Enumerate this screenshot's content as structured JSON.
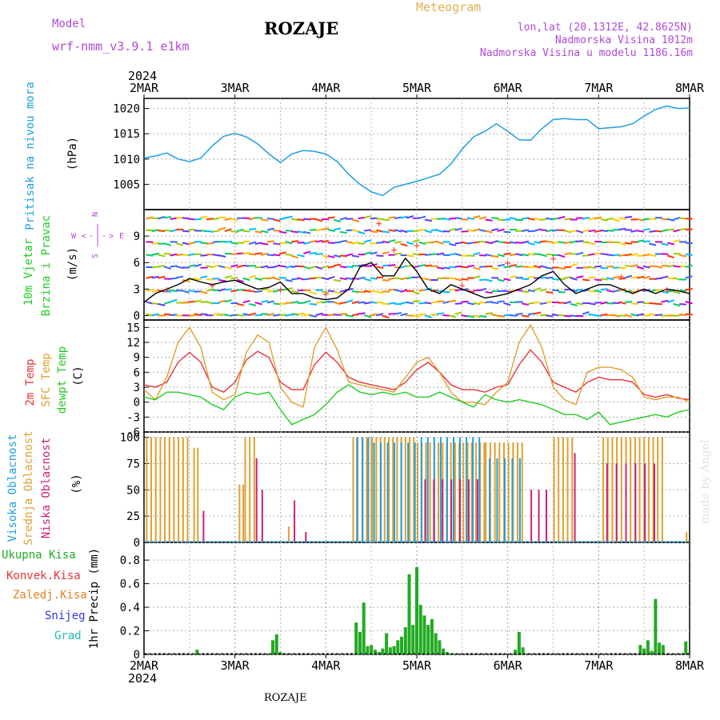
{
  "header": {
    "model_label": "Model",
    "model_name": "wrf-nmm_v3.9.1 e1km",
    "location": "ROZAJE",
    "product": "Meteogram",
    "coords": "lon,lat (20.1312E, 42.8625N)",
    "elevation": "Nadmorska Visina 1012m",
    "model_elevation": "Nadmorska Visina u modelu 1186.16m",
    "credit": "made by Angel",
    "footer_location": "ROZAJE"
  },
  "colors": {
    "pressure": "#1f9fe0",
    "wind_speed": "#000000",
    "gust_marker": "#ff3333",
    "temp_2m": "#e8323a",
    "temp_sfc": "#e0a030",
    "dewpoint": "#22cc22",
    "cloud_high": "#1f9fe0",
    "cloud_mid": "#e0a030",
    "cloud_low": "#cc1f7a",
    "precip_total": "#22aa22",
    "precip_conv": "#e8323a",
    "precip_frozen": "#e88020",
    "precip_snow": "#3333dd",
    "precip_hail": "#22bbbb",
    "title_purple": "#b04ad8",
    "meteogram_gold": "#e0b050"
  },
  "chart_data": [
    {
      "type": "line",
      "name": "pressure",
      "ylabel": "Pritisak na nivou mora",
      "unit": "(hPa)",
      "ylim": [
        1000,
        1022
      ],
      "yticks": [
        1005,
        1010,
        1015,
        1020
      ],
      "x_hours": [
        0,
        3,
        6,
        9,
        12,
        15,
        18,
        21,
        24,
        27,
        30,
        33,
        36,
        39,
        42,
        45,
        48,
        51,
        54,
        57,
        60,
        63,
        66,
        69,
        72,
        75,
        78,
        81,
        84,
        87,
        90,
        93,
        96,
        99,
        102,
        105,
        108,
        111,
        114,
        117,
        120,
        123,
        126,
        129,
        132,
        135,
        138,
        141,
        144
      ],
      "values": [
        1010.2,
        1010.6,
        1011.2,
        1010.0,
        1009.5,
        1010.2,
        1012.6,
        1014.5,
        1015.1,
        1014.4,
        1013.0,
        1011.0,
        1009.3,
        1011.0,
        1011.7,
        1011.5,
        1011.0,
        1009.5,
        1007.0,
        1005.0,
        1003.5,
        1002.8,
        1004.4,
        1005.0,
        1005.6,
        1006.3,
        1007.0,
        1009.0,
        1012.0,
        1014.4,
        1015.5,
        1017.0,
        1015.5,
        1013.8,
        1013.7,
        1016.0,
        1017.8,
        1018.0,
        1017.8,
        1017.8,
        1016.0,
        1016.2,
        1016.4,
        1017.0,
        1018.5,
        1019.8,
        1020.5,
        1020.0,
        1020.1
      ]
    },
    {
      "type": "line",
      "name": "wind",
      "ylabel_line1": "10m Vjetar",
      "ylabel_line2": "Brzina i Pravac",
      "unit": "(m/s)",
      "compass": {
        "n": "N",
        "s": "S",
        "e": "E",
        "w": "W",
        "left": "<",
        "right": ">",
        "dash": "-"
      },
      "ylim": [
        -0.5,
        12
      ],
      "yticks": [
        0,
        3,
        6,
        9
      ],
      "x_hours": [
        0,
        3,
        6,
        9,
        12,
        15,
        18,
        21,
        24,
        27,
        30,
        33,
        36,
        39,
        42,
        45,
        48,
        51,
        54,
        57,
        60,
        63,
        66,
        69,
        72,
        75,
        78,
        81,
        84,
        87,
        90,
        93,
        96,
        99,
        102,
        105,
        108,
        111,
        114,
        117,
        120,
        123,
        126,
        129,
        132,
        135,
        138,
        141,
        144
      ],
      "values": [
        1.5,
        2.5,
        3.0,
        3.5,
        4.2,
        3.8,
        3.5,
        3.8,
        4.0,
        3.5,
        3.0,
        3.2,
        3.8,
        2.5,
        2.5,
        2.0,
        1.8,
        2.0,
        3.0,
        5.5,
        6.0,
        4.5,
        4.5,
        6.5,
        5.0,
        3.0,
        2.5,
        3.5,
        3.0,
        2.5,
        2.0,
        2.2,
        2.5,
        3.0,
        3.5,
        4.5,
        5.0,
        3.5,
        2.5,
        3.0,
        3.5,
        3.5,
        3.0,
        2.5,
        3.0,
        2.5,
        3.0,
        2.8,
        2.5
      ],
      "gust_hours": [
        6,
        18,
        36,
        48,
        62,
        66,
        72,
        84,
        96,
        108,
        126,
        138
      ],
      "gust_values": [
        3.0,
        3.5,
        3.0,
        2.5,
        10.5,
        7.5,
        8.0,
        3.5,
        6.0,
        6.5,
        4.5,
        3.0
      ]
    },
    {
      "type": "line",
      "name": "temperature",
      "ylabel_2m": "2m Temp",
      "ylabel_sfc": "SFC Temp",
      "ylabel_dew": "dewpt Temp",
      "unit": "(C)",
      "ylim": [
        -6,
        16.5
      ],
      "yticks": [
        -6,
        -3,
        0,
        3,
        6,
        9,
        12,
        15
      ],
      "x_hours": [
        0,
        3,
        6,
        9,
        12,
        15,
        18,
        21,
        24,
        27,
        30,
        33,
        36,
        39,
        42,
        45,
        48,
        51,
        54,
        57,
        60,
        63,
        66,
        69,
        72,
        75,
        78,
        81,
        84,
        87,
        90,
        93,
        96,
        99,
        102,
        105,
        108,
        111,
        114,
        117,
        120,
        123,
        126,
        129,
        132,
        135,
        138,
        141,
        144
      ],
      "series": [
        {
          "key": "t2m",
          "values": [
            3.5,
            3.0,
            4.0,
            8.0,
            10.0,
            8.0,
            3.0,
            2.0,
            4.0,
            8.5,
            10.2,
            9.0,
            4.0,
            2.5,
            2.5,
            7.5,
            10.0,
            8.0,
            5.0,
            4.0,
            3.5,
            3.0,
            2.5,
            4.0,
            6.5,
            8.0,
            6.0,
            3.5,
            2.5,
            2.5,
            2.0,
            3.0,
            3.5,
            7.5,
            10.5,
            8.0,
            4.0,
            3.0,
            2.0,
            4.0,
            5.0,
            4.5,
            4.5,
            4.0,
            1.5,
            1.0,
            1.5,
            0.8,
            0.5
          ]
        },
        {
          "key": "sfc",
          "values": [
            2.5,
            0.5,
            5.0,
            12.0,
            15.0,
            11.0,
            2.0,
            0.5,
            1.5,
            10.0,
            13.5,
            12.0,
            3.0,
            0.0,
            -1.0,
            11.0,
            15.0,
            10.5,
            4.0,
            3.5,
            3.0,
            2.5,
            2.0,
            5.0,
            8.0,
            9.0,
            6.0,
            2.0,
            0.0,
            0.0,
            -0.5,
            2.0,
            4.0,
            12.0,
            15.5,
            11.0,
            3.0,
            0.5,
            -0.5,
            6.0,
            7.0,
            7.0,
            6.5,
            5.0,
            1.0,
            0.5,
            1.0,
            1.0,
            0.0
          ]
        },
        {
          "key": "dew",
          "values": [
            1.0,
            0.5,
            2.0,
            2.0,
            1.5,
            1.0,
            -0.5,
            -1.5,
            1.0,
            2.0,
            1.5,
            2.0,
            -1.5,
            -4.5,
            -3.5,
            -2.5,
            -0.5,
            2.0,
            3.5,
            2.0,
            1.5,
            2.0,
            1.5,
            2.0,
            1.0,
            1.0,
            2.0,
            1.0,
            0.0,
            -1.0,
            1.5,
            0.5,
            0.0,
            0.5,
            0.0,
            -0.5,
            -1.5,
            -2.5,
            -2.5,
            -3.5,
            -2.0,
            -4.5,
            -4.0,
            -3.5,
            -3.0,
            -2.5,
            -3.0,
            -2.0,
            -1.5
          ]
        }
      ]
    },
    {
      "type": "bar",
      "name": "cloud_cover",
      "ylabel_high": "Visoka Oblacnost",
      "ylabel_mid": "Srednja Oblacnost",
      "ylabel_low": "Niska Oblacnost",
      "unit": "(%)",
      "ylim": [
        0,
        105
      ],
      "yticks": [
        0,
        25,
        50,
        75,
        100
      ],
      "bars": [
        {
          "layer": "mid",
          "from": 0.5,
          "to": 12,
          "step": 1.2,
          "value": 100
        },
        {
          "layer": "mid",
          "from": 13,
          "to": 14,
          "step": 1,
          "value": 90
        },
        {
          "layer": "low",
          "from": 15.5,
          "to": 16,
          "step": 1,
          "value": 30
        },
        {
          "layer": "mid",
          "from": 25,
          "to": 26,
          "step": 1,
          "value": 55
        },
        {
          "layer": "mid",
          "from": 26.5,
          "to": 29,
          "step": 1.2,
          "value": 100
        },
        {
          "layer": "low",
          "from": 29.5,
          "to": 30,
          "step": 1,
          "value": 80
        },
        {
          "layer": "low",
          "from": 31,
          "to": 31.5,
          "step": 1,
          "value": 50
        },
        {
          "layer": "mid",
          "from": 38,
          "to": 38.5,
          "step": 1,
          "value": 15
        },
        {
          "layer": "low",
          "from": 39.5,
          "to": 40,
          "step": 1,
          "value": 40
        },
        {
          "layer": "low",
          "from": 42.5,
          "to": 43,
          "step": 1,
          "value": 10
        },
        {
          "layer": "mid",
          "from": 55,
          "to": 60,
          "step": 1.2,
          "value": 100
        },
        {
          "layer": "high",
          "from": 56,
          "to": 60,
          "step": 1.5,
          "value": 100
        },
        {
          "layer": "mid",
          "from": 60,
          "to": 72,
          "step": 1.1,
          "value": 100
        },
        {
          "layer": "high",
          "from": 60.5,
          "to": 72,
          "step": 1.8,
          "value": 95
        },
        {
          "layer": "mid",
          "from": 72,
          "to": 90,
          "step": 1.1,
          "value": 95
        },
        {
          "layer": "high",
          "from": 73,
          "to": 90,
          "step": 1.7,
          "value": 100
        },
        {
          "layer": "low",
          "from": 74,
          "to": 88,
          "step": 2.3,
          "value": 60
        },
        {
          "layer": "mid",
          "from": 90,
          "to": 100,
          "step": 1.2,
          "value": 95
        },
        {
          "layer": "high",
          "from": 91,
          "to": 99,
          "step": 2.0,
          "value": 80
        },
        {
          "layer": "low",
          "from": 102,
          "to": 106,
          "step": 2,
          "value": 50
        },
        {
          "layer": "mid",
          "from": 108,
          "to": 113,
          "step": 1.2,
          "value": 100
        },
        {
          "layer": "low",
          "from": 113.5,
          "to": 114,
          "step": 1,
          "value": 85
        },
        {
          "layer": "mid",
          "from": 121,
          "to": 137,
          "step": 1.2,
          "value": 100
        },
        {
          "layer": "low",
          "from": 122,
          "to": 136,
          "step": 2.5,
          "value": 75
        },
        {
          "layer": "mid",
          "from": 143,
          "to": 143.5,
          "step": 1,
          "value": 10
        }
      ]
    },
    {
      "type": "bar",
      "name": "precipitation",
      "ylabel": "1hr Precip (mm)",
      "legend": [
        "Ukupna Kisa",
        "Konvek.Kisa",
        "Zaledj.Kisa",
        "Snijeg",
        "Grad"
      ],
      "ylim": [
        0,
        0.95
      ],
      "yticks": [
        0,
        0.2,
        0.4,
        0.6,
        0.8
      ],
      "x_hours": [
        14,
        34,
        35,
        36,
        56,
        57,
        58,
        59,
        60,
        61,
        62,
        63,
        64,
        65,
        66,
        67,
        68,
        69,
        70,
        71,
        72,
        73,
        74,
        75,
        76,
        77,
        78,
        79,
        80,
        81,
        98,
        99,
        100,
        131,
        132,
        133,
        134,
        135,
        136,
        137,
        143
      ],
      "values": [
        0.04,
        0.12,
        0.17,
        0.02,
        0.27,
        0.19,
        0.44,
        0.07,
        0.08,
        0.04,
        0.02,
        0.05,
        0.18,
        0.06,
        0.07,
        0.12,
        0.15,
        0.23,
        0.68,
        0.25,
        0.74,
        0.42,
        0.33,
        0.25,
        0.3,
        0.18,
        0.12,
        0.05,
        0.02,
        0.01,
        0.04,
        0.19,
        0.06,
        0.08,
        0.05,
        0.12,
        0.03,
        0.47,
        0.1,
        0.08,
        0.11
      ]
    }
  ],
  "time_axis": {
    "year": "2024",
    "labels": [
      "2MAR",
      "3MAR",
      "4MAR",
      "5MAR",
      "6MAR",
      "7MAR",
      "8MAR"
    ],
    "label_hours": [
      0,
      24,
      48,
      72,
      96,
      120,
      144
    ]
  }
}
